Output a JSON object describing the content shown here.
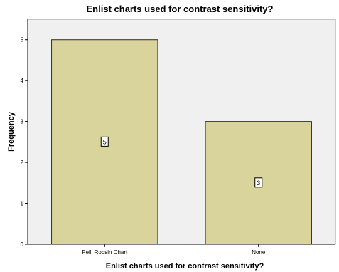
{
  "chart_data": {
    "type": "bar",
    "title": "Enlist charts used for contrast sensitivity?",
    "xlabel": "Enlist charts used for contrast sensitivity?",
    "ylabel": "Frequency",
    "categories": [
      "Pelli Robsin Chart",
      "None"
    ],
    "values": [
      5,
      3
    ],
    "ylim": [
      0,
      5.5
    ],
    "yticks": [
      0,
      1,
      2,
      3,
      4,
      5
    ],
    "data_labels": [
      "5",
      "3"
    ],
    "grid": false,
    "colors": {
      "bar_fill": "#d9d39c",
      "bar_stroke": "#2b2b2b",
      "plot_background": "#f0f0f0",
      "plot_border": "#9a9a9a"
    }
  }
}
